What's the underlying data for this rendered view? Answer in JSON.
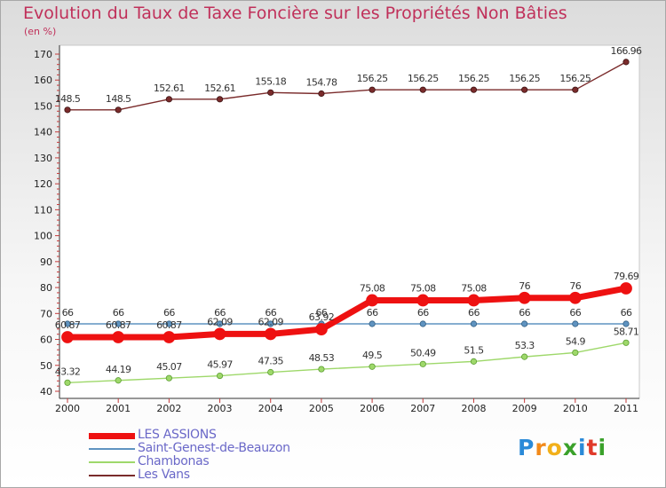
{
  "header": {
    "title": "Evolution du Taux de Taxe Foncière sur les Propriétés Non Bâties",
    "unit": "(en %)"
  },
  "chart_data": {
    "type": "line",
    "title": "Evolution du Taux de Taxe Foncière sur les Propriétés Non Bâties",
    "ylabel": "(en %)",
    "xlabel": "",
    "ylim": [
      40,
      170
    ],
    "yticks": [
      40,
      50,
      60,
      70,
      80,
      90,
      100,
      110,
      120,
      130,
      140,
      150,
      160,
      170
    ],
    "grid": false,
    "legend_position": "bottom-left",
    "categories": [
      "2000",
      "2001",
      "2002",
      "2003",
      "2004",
      "2005",
      "2006",
      "2007",
      "2008",
      "2009",
      "2010",
      "2011"
    ],
    "series": [
      {
        "name": "Les Vans",
        "color": "#7a2b2b",
        "values": [
          148.5,
          148.5,
          152.61,
          152.61,
          155.18,
          154.78,
          156.25,
          156.25,
          156.25,
          156.25,
          156.25,
          166.96
        ],
        "labels": [
          "148.5",
          "148.5",
          "152.61",
          "152.61",
          "155.18",
          "154.78",
          "156.25",
          "156.25",
          "156.25",
          "156.25",
          "156.25",
          "166.96"
        ]
      },
      {
        "name": "Saint-Genest-de-Beauzon",
        "color": "#5f93c0",
        "values": [
          66,
          66,
          66,
          66,
          66,
          66,
          66,
          66,
          66,
          66,
          66,
          66
        ],
        "labels": [
          "66",
          "66",
          "66",
          "66",
          "66",
          "66",
          "66",
          "66",
          "66",
          "66",
          "66",
          "66"
        ]
      },
      {
        "name": "LES ASSIONS",
        "color": "#ee1111",
        "values": [
          60.87,
          60.87,
          60.87,
          62.09,
          62.09,
          63.92,
          75.08,
          75.08,
          75.08,
          76,
          76,
          79.69
        ],
        "labels": [
          "60.87",
          "60.87",
          "60.87",
          "62.09",
          "62.09",
          "63.92",
          "75.08",
          "75.08",
          "75.08",
          "76",
          "76",
          "79.69"
        ]
      },
      {
        "name": "Chambonas",
        "color": "#9ed86a",
        "values": [
          43.32,
          44.19,
          45.07,
          45.97,
          47.35,
          48.53,
          49.5,
          50.49,
          51.5,
          53.3,
          54.9,
          58.71
        ],
        "labels": [
          "43.32",
          "44.19",
          "45.07",
          "45.97",
          "47.35",
          "48.53",
          "49.5",
          "50.49",
          "51.5",
          "53.3",
          "54.9",
          "58.71"
        ]
      }
    ]
  },
  "legend": [
    {
      "label": "LES ASSIONS",
      "color": "#ee1111"
    },
    {
      "label": "Saint-Genest-de-Beauzon",
      "color": "#5f93c0"
    },
    {
      "label": "Chambonas",
      "color": "#9ed86a"
    },
    {
      "label": "Les Vans",
      "color": "#7a2b2b"
    }
  ],
  "logo": {
    "letters": [
      "P",
      "r",
      "o",
      "x",
      "i",
      "t",
      "i"
    ],
    "colors": [
      "#2a8ad8",
      "#f28a1a",
      "#f2b01a",
      "#3aa12a",
      "#2a8ad8",
      "#e03a2a",
      "#3aa12a"
    ]
  }
}
